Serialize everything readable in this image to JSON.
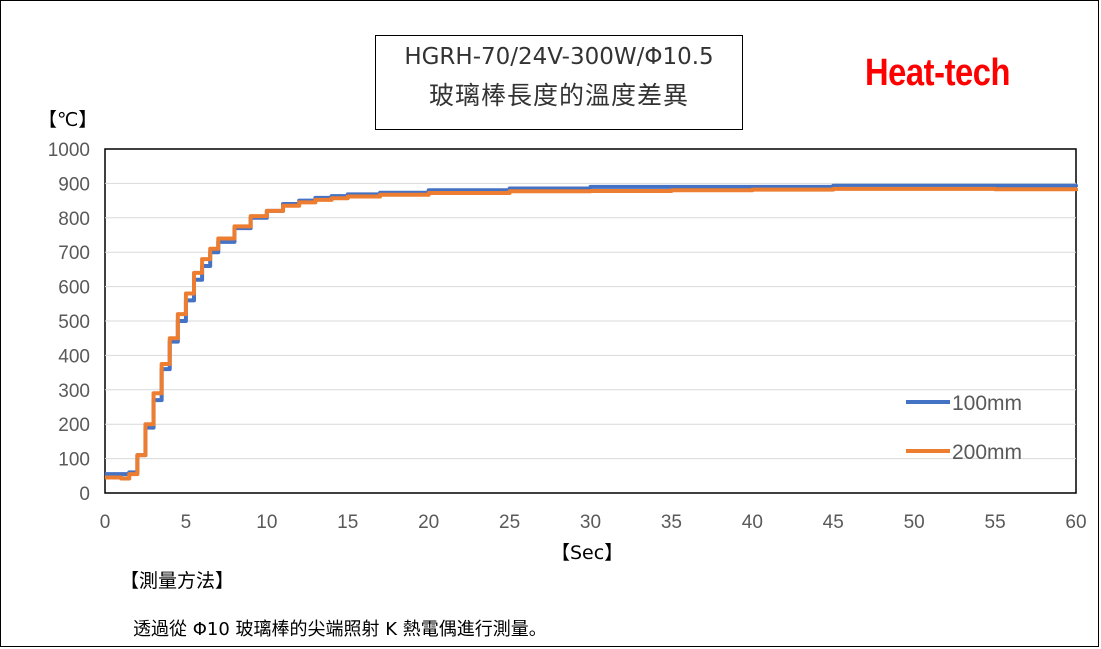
{
  "chart_data": {
    "type": "line",
    "title": "HGRH-70/24V-300W/Φ10.5",
    "subtitle": "玻璃棒長度的溫度差異",
    "brand": "Heat-tech",
    "ylabel": "【℃】",
    "xlabel": "【Sec】",
    "xlim": [
      0,
      60
    ],
    "ylim": [
      0,
      1000
    ],
    "x_ticks": [
      "0",
      "5",
      "10",
      "15",
      "20",
      "25",
      "30",
      "35",
      "40",
      "45",
      "50",
      "55",
      "60"
    ],
    "y_ticks": [
      "0",
      "100",
      "200",
      "300",
      "400",
      "500",
      "600",
      "700",
      "800",
      "900",
      "1000"
    ],
    "grid": "horizontal",
    "legend_position": "bottom-right",
    "series": [
      {
        "name": "100mm",
        "color": "#4472C4",
        "x": [
          0,
          1,
          1.5,
          2,
          2.5,
          3,
          3.5,
          4,
          4.5,
          5,
          5.5,
          6,
          6.5,
          7,
          8,
          9,
          10,
          11,
          12,
          13,
          14,
          15,
          17,
          20,
          25,
          30,
          35,
          40,
          45,
          50,
          55,
          60
        ],
        "y": [
          55,
          55,
          60,
          110,
          190,
          270,
          360,
          440,
          500,
          560,
          620,
          660,
          700,
          730,
          770,
          800,
          820,
          840,
          850,
          858,
          863,
          868,
          873,
          880,
          885,
          890,
          890,
          890,
          893,
          893,
          893,
          890
        ]
      },
      {
        "name": "200mm",
        "color": "#ED7D31",
        "x": [
          0,
          1,
          1.5,
          2,
          2.5,
          3,
          3.5,
          4,
          4.5,
          5,
          5.5,
          6,
          6.5,
          7,
          8,
          9,
          10,
          11,
          12,
          13,
          14,
          15,
          17,
          20,
          25,
          30,
          35,
          40,
          45,
          50,
          55,
          60
        ],
        "y": [
          45,
          42,
          55,
          110,
          200,
          290,
          375,
          450,
          520,
          580,
          640,
          680,
          710,
          740,
          775,
          805,
          820,
          835,
          845,
          852,
          857,
          862,
          867,
          872,
          877,
          878,
          880,
          882,
          884,
          884,
          883,
          878
        ]
      }
    ]
  },
  "method": {
    "title": "【測量方法】",
    "text": "透過從 Φ10 玻璃棒的尖端照射 K 熱電偶進行測量。"
  }
}
